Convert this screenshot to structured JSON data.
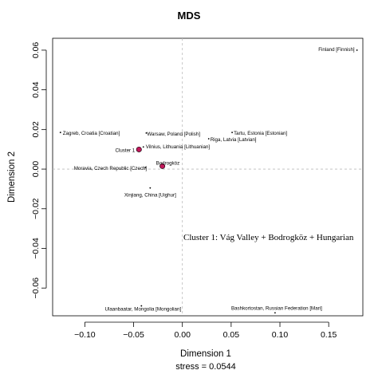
{
  "chart_data": {
    "type": "scatter",
    "title": "MDS",
    "xlabel": "Dimension 1",
    "ylabel": "Dimension 2",
    "stress_text": "stress = 0.0544",
    "xlim": [
      -0.133,
      0.185
    ],
    "ylim": [
      -0.074,
      0.066
    ],
    "x_ticks": [
      -0.1,
      -0.05,
      0.0,
      0.05,
      0.1,
      0.15
    ],
    "x_tick_labels": [
      "−0.10",
      "−0.05",
      "0.00",
      "0.05",
      "0.10",
      "0.15"
    ],
    "y_ticks": [
      -0.06,
      -0.04,
      -0.02,
      0.0,
      0.02,
      0.04,
      0.06
    ],
    "y_tick_labels": [
      "−0.06",
      "−0.04",
      "−0.02",
      "0.00",
      "0.02",
      "0.04",
      "0.06"
    ],
    "reference_lines": {
      "x": 0,
      "y": 0,
      "style": "dashed"
    },
    "points": [
      {
        "label": "Finland [Finnish]",
        "x": 0.179,
        "y": 0.06,
        "highlight": false
      },
      {
        "label": "Zagreb, Croatia [Croatian]",
        "x": -0.125,
        "y": 0.0185,
        "highlight": false
      },
      {
        "label": "Warsaw, Poland [Polish]",
        "x": -0.037,
        "y": 0.0182,
        "highlight": false
      },
      {
        "label": "Tartu, Estonia [Estonian]",
        "x": 0.051,
        "y": 0.0185,
        "highlight": false
      },
      {
        "label": "Riga, Latvia [Latvian]",
        "x": 0.027,
        "y": 0.0153,
        "highlight": false
      },
      {
        "label": "Vilnius, Lithuania [Lithuanian]",
        "x": -0.04,
        "y": 0.0112,
        "highlight": false
      },
      {
        "label": "Cluster 1",
        "x": -0.0445,
        "y": 0.0099,
        "highlight": true
      },
      {
        "label": "Bodrogköz",
        "x": -0.0205,
        "y": 0.0015,
        "highlight": true
      },
      {
        "label": "Moravia, Czech Republic [Czech]",
        "x": -0.038,
        "y": 0.0008,
        "highlight": false
      },
      {
        "label": "Xinjiang, China [Uighur]",
        "x": -0.033,
        "y": -0.0095,
        "highlight": false
      },
      {
        "label": "Ulaanbaatar, Mongolia [Mongolian]",
        "x": -0.042,
        "y": -0.069,
        "highlight": false
      },
      {
        "label": "Bashkortostan, Russian Federation [Mari]",
        "x": 0.095,
        "y": -0.0725,
        "highlight": false
      }
    ],
    "annotation": "Cluster 1: Vág Valley + Bodrogköz + Hungarian",
    "colors": {
      "highlight_fill": "#c2185b",
      "axis": "#000000",
      "reference": "#bbbbbb"
    }
  }
}
